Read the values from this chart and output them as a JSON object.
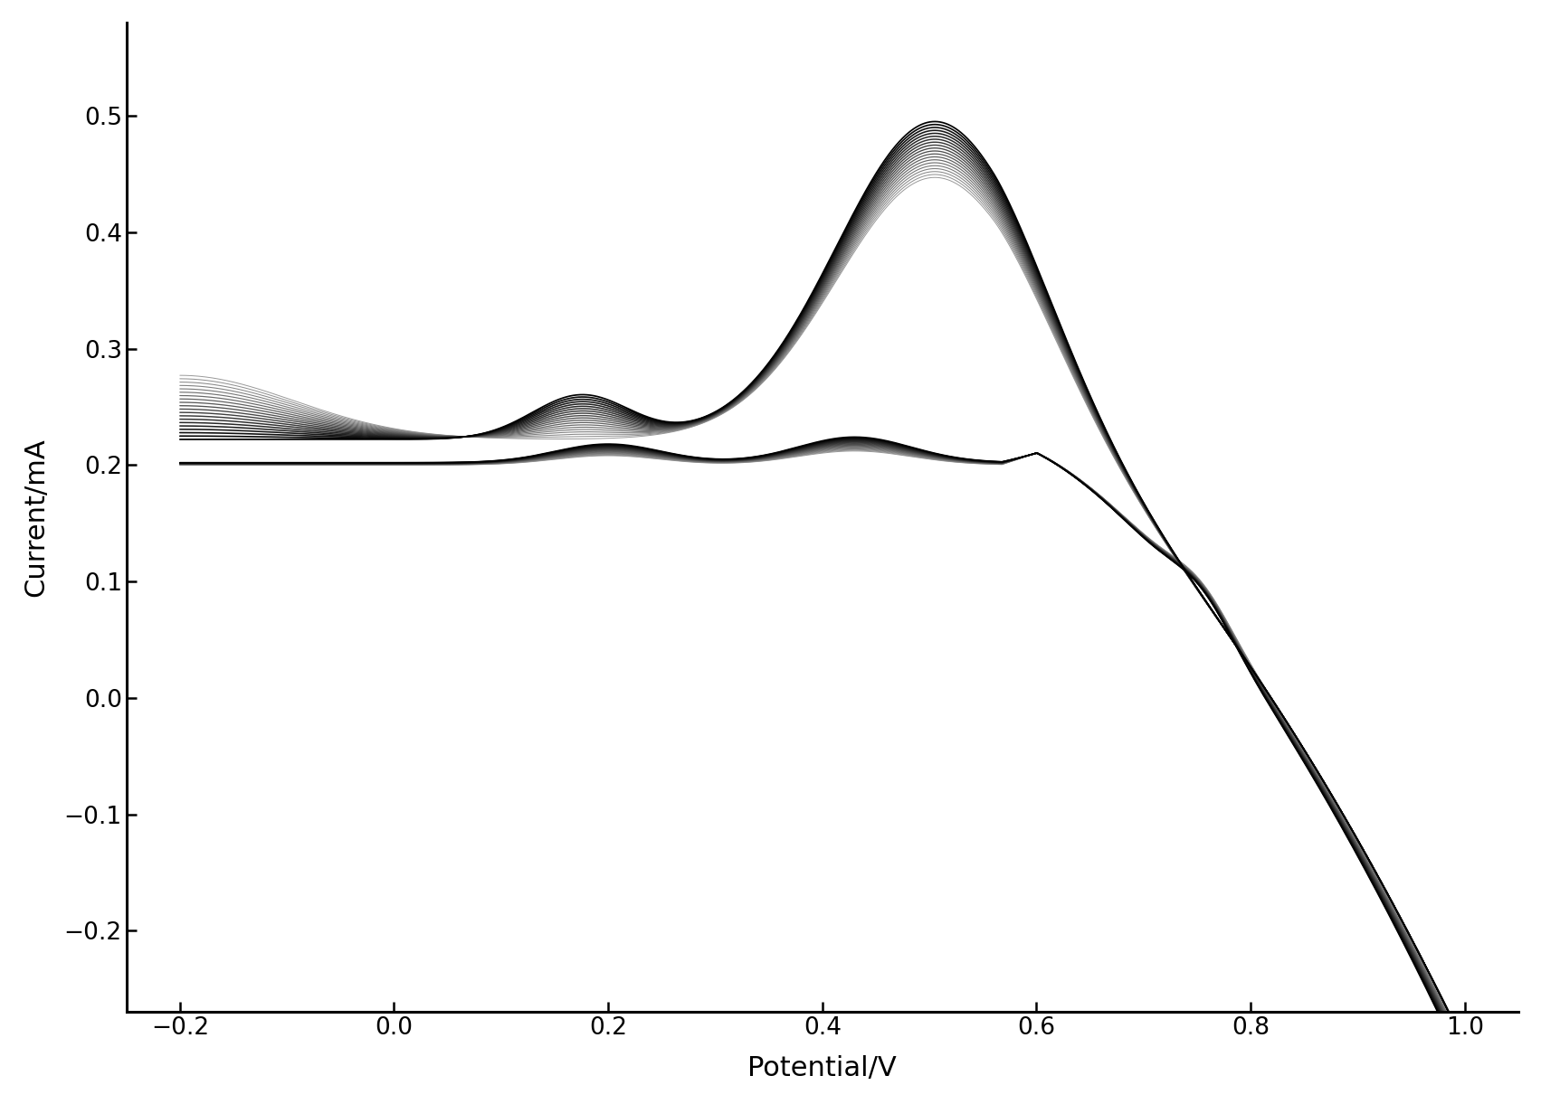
{
  "xlabel": "Potential/V",
  "ylabel": "Current/mA",
  "xlim": [
    -0.25,
    1.05
  ],
  "ylim": [
    -0.27,
    0.58
  ],
  "xticks": [
    -0.2,
    0.0,
    0.2,
    0.4,
    0.6,
    0.8,
    1.0
  ],
  "yticks": [
    -0.2,
    -0.1,
    0.0,
    0.1,
    0.2,
    0.3,
    0.4,
    0.5
  ],
  "n_cycles": 20,
  "background_color": "#ffffff",
  "xlabel_fontsize": 22,
  "ylabel_fontsize": 22,
  "tick_fontsize": 19,
  "figsize": [
    17.03,
    12.21
  ],
  "dpi": 100
}
